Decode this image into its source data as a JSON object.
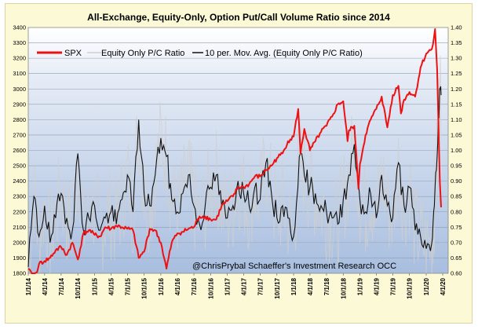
{
  "chart_data": {
    "type": "line",
    "title": "All-Exchange, Equity-Only, Option Put/Call Volume Ratio since 2014",
    "credit": "@ChrisPrybal   Schaeffer's Investment Research   OCC",
    "x_ticks": [
      "1/1/14",
      "4/1/14",
      "7/1/14",
      "10/1/14",
      "1/1/15",
      "4/1/15",
      "7/1/15",
      "10/1/15",
      "1/1/16",
      "4/1/16",
      "7/1/16",
      "10/1/16",
      "1/1/17",
      "4/1/17",
      "7/1/17",
      "10/1/17",
      "1/1/18",
      "4/1/18",
      "7/1/18",
      "10/1/18",
      "1/1/19",
      "4/1/19",
      "7/1/19",
      "10/1/19",
      "1/1/20",
      "4/1/20"
    ],
    "y_left": {
      "min": 1800,
      "max": 3400,
      "ticks": [
        "1800",
        "1900",
        "2000",
        "2100",
        "2200",
        "2300",
        "2400",
        "2500",
        "2600",
        "2700",
        "2800",
        "2900",
        "3000",
        "3100",
        "3200",
        "3300",
        "3400"
      ]
    },
    "y_right": {
      "min": 0.6,
      "max": 1.4,
      "ticks": [
        "0.60",
        "0.65",
        "0.70",
        "0.75",
        "0.80",
        "0.85",
        "0.90",
        "0.95",
        "1.00",
        "1.05",
        "1.10",
        "1.15",
        "1.20",
        "1.25",
        "1.30",
        "1.35",
        "1.40"
      ]
    },
    "grid": true,
    "legend_position": "top-left",
    "series": [
      {
        "name": "SPX",
        "color": "#ee1111",
        "axis": "left",
        "points": [
          [
            "1/1/14",
            1830
          ],
          [
            "2/1/14",
            1760
          ],
          [
            "3/1/14",
            1860
          ],
          [
            "4/1/14",
            1880
          ],
          [
            "5/1/14",
            1900
          ],
          [
            "6/1/14",
            1950
          ],
          [
            "7/1/14",
            1970
          ],
          [
            "8/1/14",
            1920
          ],
          [
            "9/1/14",
            2000
          ],
          [
            "10/1/14",
            1890
          ],
          [
            "11/1/14",
            2060
          ],
          [
            "12/1/14",
            2080
          ],
          [
            "1/1/15",
            2050
          ],
          [
            "2/1/15",
            2040
          ],
          [
            "3/1/15",
            2100
          ],
          [
            "4/1/15",
            2090
          ],
          [
            "5/1/15",
            2110
          ],
          [
            "6/1/15",
            2100
          ],
          [
            "7/1/15",
            2090
          ],
          [
            "8/1/15",
            2080
          ],
          [
            "9/1/15",
            1900
          ],
          [
            "10/1/15",
            1940
          ],
          [
            "11/1/15",
            2090
          ],
          [
            "12/1/15",
            2080
          ],
          [
            "1/1/16",
            2000
          ],
          [
            "2/1/16",
            1830
          ],
          [
            "3/1/16",
            2000
          ],
          [
            "4/1/16",
            2060
          ],
          [
            "5/1/16",
            2070
          ],
          [
            "6/1/16",
            2090
          ],
          [
            "7/1/16",
            2100
          ],
          [
            "8/1/16",
            2170
          ],
          [
            "9/1/16",
            2170
          ],
          [
            "10/1/16",
            2150
          ],
          [
            "11/1/16",
            2150
          ],
          [
            "12/1/16",
            2240
          ],
          [
            "1/1/17",
            2270
          ],
          [
            "2/1/17",
            2300
          ],
          [
            "3/1/17",
            2360
          ],
          [
            "4/1/17",
            2360
          ],
          [
            "5/1/17",
            2380
          ],
          [
            "6/1/17",
            2430
          ],
          [
            "7/1/17",
            2430
          ],
          [
            "8/1/17",
            2470
          ],
          [
            "9/1/17",
            2500
          ],
          [
            "10/1/17",
            2550
          ],
          [
            "11/1/17",
            2580
          ],
          [
            "12/1/17",
            2660
          ],
          [
            "1/1/18",
            2690
          ],
          [
            "1/26/18",
            2870
          ],
          [
            "2/8/18",
            2580
          ],
          [
            "3/1/18",
            2740
          ],
          [
            "4/1/18",
            2600
          ],
          [
            "5/1/18",
            2660
          ],
          [
            "6/1/18",
            2720
          ],
          [
            "7/1/18",
            2760
          ],
          [
            "8/1/18",
            2820
          ],
          [
            "9/1/18",
            2900
          ],
          [
            "10/1/18",
            2920
          ],
          [
            "10/25/18",
            2660
          ],
          [
            "11/1/18",
            2730
          ],
          [
            "12/1/18",
            2760
          ],
          [
            "12/24/18",
            2350
          ],
          [
            "1/1/19",
            2510
          ],
          [
            "2/1/19",
            2700
          ],
          [
            "3/1/19",
            2800
          ],
          [
            "4/1/19",
            2870
          ],
          [
            "5/1/19",
            2950
          ],
          [
            "6/1/19",
            2750
          ],
          [
            "7/1/19",
            2960
          ],
          [
            "8/1/19",
            3020
          ],
          [
            "8/15/19",
            2840
          ],
          [
            "9/1/19",
            2930
          ],
          [
            "10/1/19",
            2980
          ],
          [
            "11/1/19",
            2950
          ],
          [
            "12/1/19",
            3140
          ],
          [
            "1/1/20",
            3230
          ],
          [
            "2/1/20",
            3260
          ],
          [
            "2/19/20",
            3390
          ],
          [
            "3/1/20",
            3130
          ],
          [
            "3/9/20",
            2750
          ],
          [
            "3/16/20",
            2390
          ],
          [
            "3/23/20",
            2230
          ]
        ]
      },
      {
        "name": "Equity Only P/C Ratio",
        "color": "#cfcfcf",
        "axis": "right",
        "points": []
      },
      {
        "name": "10 per. Mov. Avg. (Equity Only P/C Ratio)",
        "color": "#111111",
        "axis": "right",
        "points": [
          [
            "1/1/14",
            0.62
          ],
          [
            "2/1/14",
            0.85
          ],
          [
            "3/1/14",
            0.72
          ],
          [
            "4/1/14",
            0.82
          ],
          [
            "5/1/14",
            0.7
          ],
          [
            "6/1/14",
            0.78
          ],
          [
            "7/1/14",
            0.86
          ],
          [
            "8/1/14",
            0.78
          ],
          [
            "9/1/14",
            0.74
          ],
          [
            "10/1/14",
            0.99
          ],
          [
            "11/1/14",
            0.74
          ],
          [
            "12/1/14",
            0.78
          ],
          [
            "1/1/15",
            0.82
          ],
          [
            "2/1/15",
            0.74
          ],
          [
            "3/1/15",
            0.78
          ],
          [
            "4/1/15",
            0.8
          ],
          [
            "5/1/15",
            0.76
          ],
          [
            "6/1/15",
            0.84
          ],
          [
            "7/1/15",
            0.92
          ],
          [
            "8/1/15",
            0.8
          ],
          [
            "9/1/15",
            1.1
          ],
          [
            "10/1/15",
            0.86
          ],
          [
            "11/1/15",
            0.82
          ],
          [
            "12/1/15",
            0.92
          ],
          [
            "1/1/16",
            1.04
          ],
          [
            "2/1/16",
            0.98
          ],
          [
            "3/1/16",
            0.84
          ],
          [
            "4/1/16",
            0.8
          ],
          [
            "5/1/16",
            0.86
          ],
          [
            "6/1/16",
            0.92
          ],
          [
            "7/1/16",
            0.82
          ],
          [
            "8/1/16",
            0.76
          ],
          [
            "9/1/16",
            0.82
          ],
          [
            "10/1/16",
            0.88
          ],
          [
            "11/1/16",
            0.92
          ],
          [
            "12/1/16",
            0.82
          ],
          [
            "1/1/17",
            0.78
          ],
          [
            "2/1/17",
            0.82
          ],
          [
            "3/1/17",
            0.9
          ],
          [
            "4/1/17",
            0.86
          ],
          [
            "5/1/17",
            0.82
          ],
          [
            "6/1/17",
            0.88
          ],
          [
            "7/1/17",
            0.84
          ],
          [
            "8/1/17",
            0.96
          ],
          [
            "9/1/17",
            0.86
          ],
          [
            "10/1/17",
            0.78
          ],
          [
            "11/1/17",
            0.82
          ],
          [
            "12/1/17",
            0.78
          ],
          [
            "1/1/18",
            0.72
          ],
          [
            "2/1/18",
            0.98
          ],
          [
            "3/1/18",
            0.92
          ],
          [
            "4/1/18",
            0.88
          ],
          [
            "5/1/18",
            0.86
          ],
          [
            "6/1/18",
            0.82
          ],
          [
            "7/1/18",
            0.8
          ],
          [
            "8/1/18",
            0.78
          ],
          [
            "9/1/18",
            0.76
          ],
          [
            "10/1/18",
            0.84
          ],
          [
            "11/1/18",
            0.92
          ],
          [
            "12/1/18",
            1.02
          ],
          [
            "1/1/19",
            0.84
          ],
          [
            "2/1/19",
            0.8
          ],
          [
            "3/1/19",
            0.86
          ],
          [
            "4/1/19",
            0.78
          ],
          [
            "5/1/19",
            0.92
          ],
          [
            "6/1/19",
            0.82
          ],
          [
            "7/1/19",
            0.78
          ],
          [
            "8/1/19",
            0.96
          ],
          [
            "9/1/19",
            0.82
          ],
          [
            "10/1/19",
            0.88
          ],
          [
            "11/1/19",
            0.74
          ],
          [
            "12/1/19",
            0.72
          ],
          [
            "1/1/20",
            0.68
          ],
          [
            "2/1/20",
            0.7
          ],
          [
            "2/15/20",
            0.82
          ],
          [
            "3/1/20",
            0.98
          ],
          [
            "3/15/20",
            1.2
          ],
          [
            "3/23/20",
            1.18
          ]
        ]
      }
    ]
  }
}
